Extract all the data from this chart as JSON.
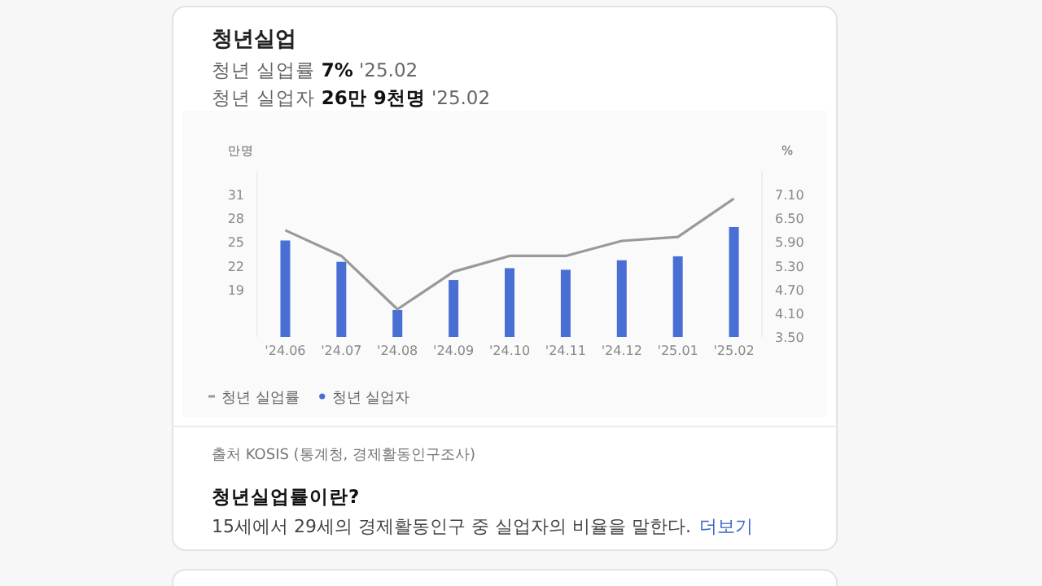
{
  "chart_data": {
    "type": "bar",
    "title": "청년실업",
    "subtitle": "청년 실업률 **7%** '25.02",
    "annotations": [
      "청년 실업자 **26만 9천명** '25.02",
      "출처 KOSIS (통계청, 경제활동인구조사)",
      "**청년실업률이란?**",
      "15세에서 29세의 경제활동인구 중 실업자의 비율을 말한다.",
      "더보기"
    ],
    "ylabel": "만명",
    "y2label": "%",
    "categories": [
      "'24.06",
      "'24.07",
      "'24.08",
      "'24.09",
      "'24.10",
      "'24.11",
      "'24.12",
      "'25.01",
      "'25.02"
    ],
    "series": [
      {
        "name": "청년 실업률",
        "type": "line",
        "axis": "y2",
        "color": "#999999",
        "values": [
          6.2,
          5.55,
          4.2,
          5.15,
          5.55,
          5.55,
          5.93,
          6.03,
          7.0
        ]
      },
      {
        "name": "청년 실업자",
        "color": "#4a6fd4",
        "values": [
          25.2,
          22.5,
          16.4,
          20.2,
          21.7,
          21.5,
          22.7,
          23.2,
          26.9
        ]
      }
    ],
    "ylim": [
      13,
      34
    ],
    "yticks": [
      19,
      22,
      25,
      28,
      31
    ],
    "y2lim": [
      3.5,
      7.7
    ],
    "y2ticks": [
      {
        "value": 3.5,
        "label": "3.50"
      },
      {
        "value": 4.1,
        "label": "4.10"
      },
      {
        "value": 4.7,
        "label": "4.70"
      },
      {
        "value": 5.3,
        "label": "5.30"
      },
      {
        "value": 5.9,
        "label": "5.90"
      },
      {
        "value": 6.5,
        "label": "6.50"
      },
      {
        "value": 7.1,
        "label": "7.10"
      }
    ],
    "legend": "bottom"
  }
}
